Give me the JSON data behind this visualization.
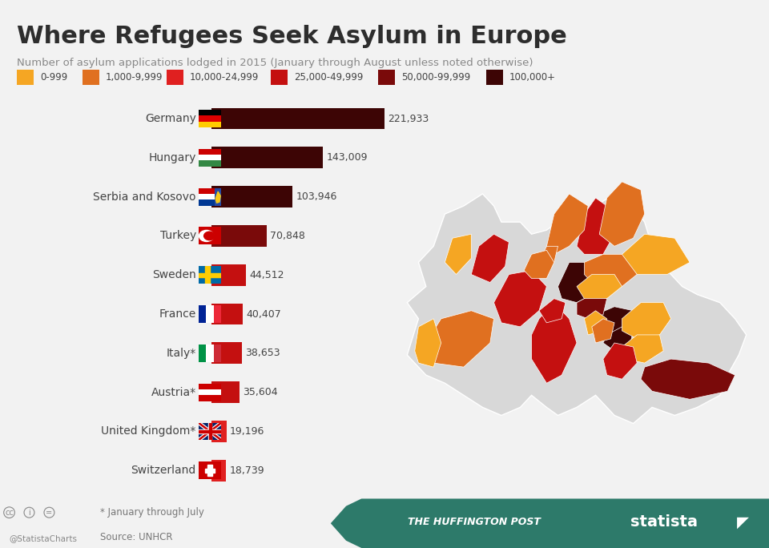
{
  "title": "Where Refugees Seek Asylum in Europe",
  "subtitle": "Number of asylum applications lodged in 2015 (January through August unless noted otherwise)",
  "countries": [
    "Germany",
    "Hungary",
    "Serbia and Kosovo",
    "Turkey",
    "Sweden",
    "France",
    "Italy*",
    "Austria*",
    "United Kingdom*",
    "Switzerland"
  ],
  "values": [
    221933,
    143009,
    103946,
    70848,
    44512,
    40407,
    38653,
    35604,
    19196,
    18739
  ],
  "labels": [
    "221,933",
    "143,009",
    "103,946",
    "70,848",
    "44,512",
    "40,407",
    "38,653",
    "35,604",
    "19,196",
    "18,739"
  ],
  "legend_colors": [
    "#f5a623",
    "#e07020",
    "#e02020",
    "#c41010",
    "#7a0a0a",
    "#3d0505"
  ],
  "legend_labels": [
    "0-999",
    "1,000-9,999",
    "10,000-24,999",
    "25,000-49,999",
    "50,000-99,999",
    "100,000+"
  ],
  "bg_color": "#f2f2f2",
  "title_color": "#2d2d2d",
  "subtitle_color": "#888888",
  "label_color": "#444444",
  "footer_bg": "#2d7a6a",
  "footer_text": "THE HUFFINGTON POST",
  "footer_brand": "statista",
  "footnote1": "* January through July",
  "footnote2": "Source: UNHCR",
  "handle": "@StatistaCharts"
}
